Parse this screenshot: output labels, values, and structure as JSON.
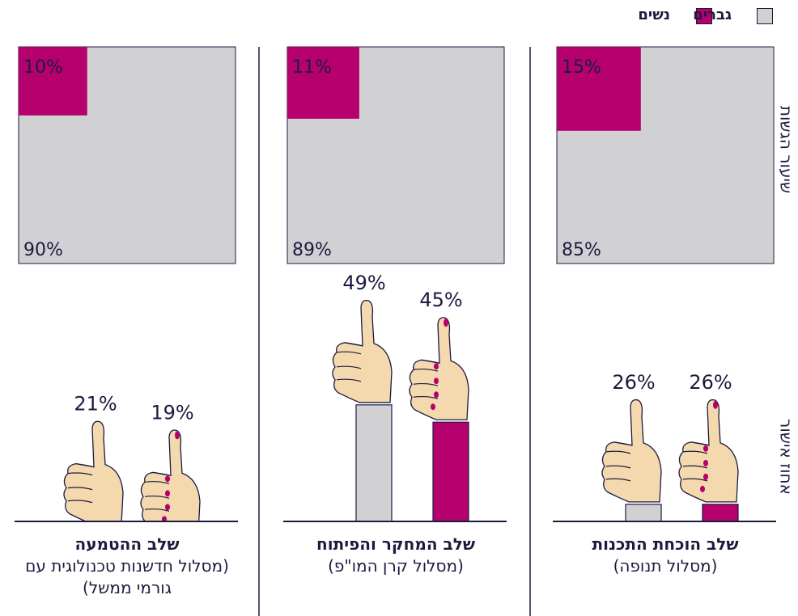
{
  "chart_data": [
    {
      "type": "square",
      "title": "שיעור הגשות",
      "series": [
        {
          "name": "נשים",
          "color": "#b5006e",
          "values": [
            15,
            11,
            10
          ],
          "value_labels": [
            "15%",
            "11%",
            "10%"
          ]
        },
        {
          "name": "גברים",
          "color": "#d1d1d3",
          "values": [
            85,
            89,
            90
          ],
          "value_labels": [
            "85%",
            "89%",
            "90%"
          ]
        }
      ]
    },
    {
      "type": "thumbs",
      "title": "אחוז אישור",
      "series": [
        {
          "name": "גברים",
          "color": "#d1d1d3",
          "values": [
            26,
            49,
            21
          ],
          "value_labels": [
            "26%",
            "49%",
            "21%"
          ]
        },
        {
          "name": "נשים",
          "color": "#b5006e",
          "values": [
            26,
            45,
            19
          ],
          "value_labels": [
            "26%",
            "45%",
            "19%"
          ]
        }
      ]
    }
  ],
  "panels": [
    {
      "title": "שלב הוכחת התכנות",
      "subtitle": "(מסלול תנופה)"
    },
    {
      "title": "שלב המחקר והפיתוח",
      "subtitle": "(מסלול קרן המו\"פ)"
    },
    {
      "title": "שלב ההטמעה",
      "subtitle": "(מסלול חדשנות טכנולוגית עם גורמי ממשל)"
    }
  ]
}
